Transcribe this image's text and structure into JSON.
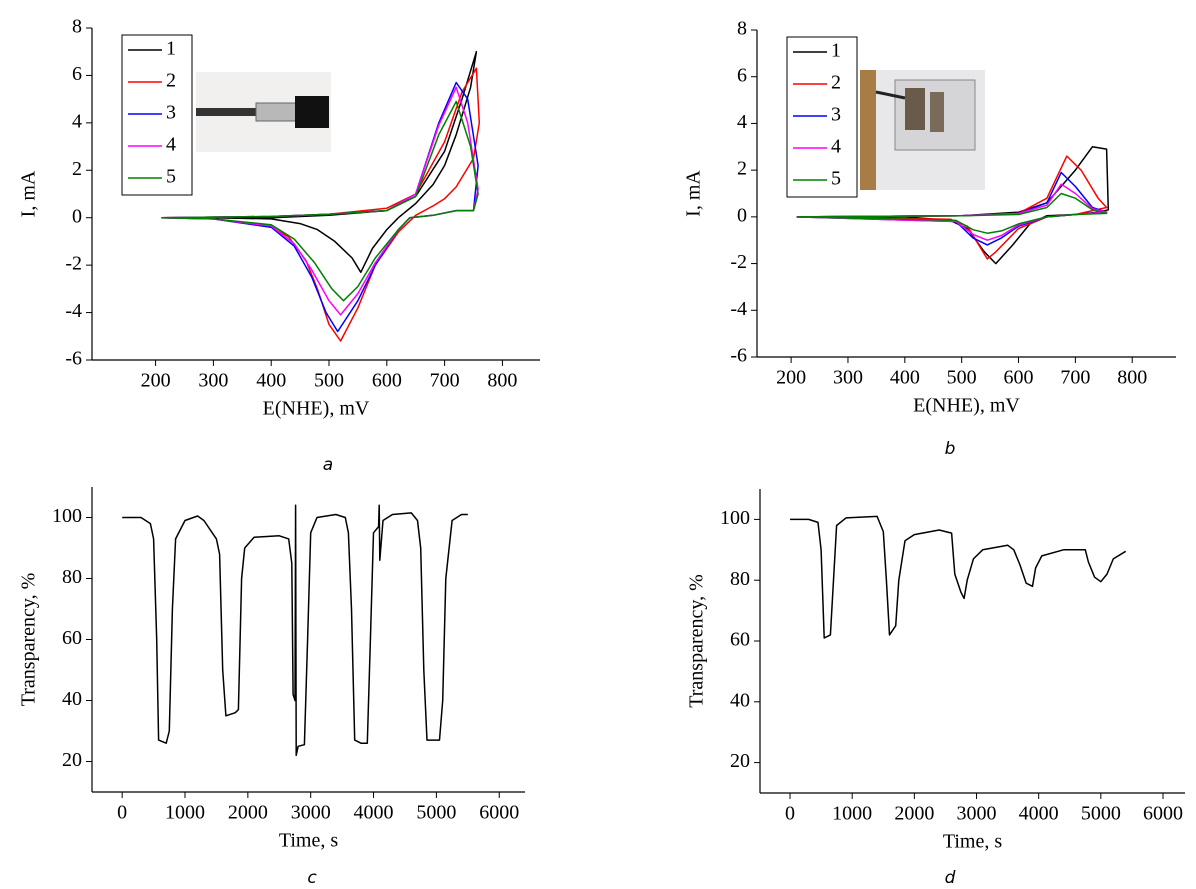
{
  "chart_data": [
    {
      "type": "line",
      "xlabel": "E(NHE), mV",
      "ylabel": "I, mA",
      "caption": "a",
      "xlim": [
        90,
        865
      ],
      "ylim": [
        -6,
        8
      ],
      "xticks": [
        200,
        300,
        400,
        500,
        600,
        700,
        800
      ],
      "yticks": [
        -6,
        -4,
        -2,
        0,
        2,
        4,
        6,
        8
      ],
      "legend": "upper left",
      "series": [
        {
          "name": "1",
          "color": "#000000",
          "x": [
            210,
            400,
            500,
            600,
            650,
            700,
            730,
            755,
            745,
            720,
            700,
            680,
            650,
            620,
            600,
            575,
            555,
            540,
            510,
            480,
            450,
            400,
            300,
            210
          ],
          "values": [
            0,
            0,
            0.1,
            0.3,
            0.9,
            2.8,
            5,
            7,
            5.5,
            3.5,
            2.2,
            1.4,
            0.6,
            0,
            -0.5,
            -1.3,
            -2.3,
            -1.7,
            -1,
            -0.5,
            -0.25,
            -0.05,
            0,
            0
          ]
        },
        {
          "name": "2",
          "color": "#ff0000",
          "x": [
            210,
            400,
            500,
            600,
            650,
            700,
            730,
            755,
            760,
            750,
            720,
            700,
            680,
            650,
            620,
            580,
            550,
            520,
            500,
            480,
            460,
            430,
            400,
            300,
            210
          ],
          "values": [
            0,
            0.05,
            0.15,
            0.4,
            1,
            3.2,
            5.3,
            6.3,
            4,
            2.5,
            1.3,
            0.8,
            0.5,
            0.1,
            -0.6,
            -2,
            -3.8,
            -5.2,
            -4.5,
            -3,
            -1.8,
            -0.8,
            -0.4,
            -0.05,
            0
          ]
        },
        {
          "name": "3",
          "color": "#0000ff",
          "x": [
            210,
            400,
            500,
            600,
            650,
            690,
            720,
            740,
            758,
            750,
            720,
            680,
            640,
            620,
            580,
            550,
            515,
            495,
            470,
            440,
            400,
            300,
            210
          ],
          "values": [
            0,
            0.05,
            0.15,
            0.3,
            1,
            4,
            5.7,
            5,
            2.2,
            0.3,
            0.3,
            0.1,
            0,
            -0.5,
            -2,
            -3.5,
            -4.8,
            -4,
            -2.5,
            -1.2,
            -0.4,
            -0.05,
            0
          ]
        },
        {
          "name": "4",
          "color": "#ff00ff",
          "x": [
            210,
            400,
            500,
            600,
            650,
            690,
            720,
            740,
            758,
            750,
            720,
            680,
            640,
            620,
            580,
            550,
            520,
            500,
            470,
            440,
            400,
            300,
            210
          ],
          "values": [
            0,
            0.05,
            0.15,
            0.3,
            1,
            3.9,
            5.5,
            4,
            1.2,
            0.3,
            0.3,
            0.1,
            0,
            -0.5,
            -1.9,
            -3.2,
            -4.1,
            -3.5,
            -2.2,
            -1.1,
            -0.35,
            -0.05,
            0
          ]
        },
        {
          "name": "5",
          "color": "#008000",
          "x": [
            210,
            400,
            500,
            600,
            650,
            690,
            720,
            745,
            758,
            750,
            720,
            680,
            640,
            620,
            580,
            550,
            525,
            505,
            475,
            440,
            400,
            300,
            210
          ],
          "values": [
            0,
            0.05,
            0.15,
            0.3,
            0.9,
            3.5,
            4.9,
            3,
            1,
            0.3,
            0.3,
            0.1,
            0,
            -0.5,
            -1.7,
            -2.9,
            -3.5,
            -3,
            -1.9,
            -0.9,
            -0.3,
            -0.05,
            0
          ]
        }
      ]
    },
    {
      "type": "line",
      "xlabel": "E(NHE), mV",
      "ylabel": "I, mA",
      "caption": "b",
      "xlim": [
        140,
        877
      ],
      "ylim": [
        -6,
        8
      ],
      "xticks": [
        200,
        300,
        400,
        500,
        600,
        700,
        800
      ],
      "yticks": [
        -6,
        -4,
        -2,
        0,
        2,
        4,
        6,
        8
      ],
      "legend": "upper left",
      "series": [
        {
          "name": "1",
          "color": "#000000",
          "x": [
            210,
            500,
            600,
            650,
            700,
            730,
            755,
            758,
            740,
            700,
            650,
            620,
            590,
            560,
            540,
            510,
            480,
            400,
            210
          ],
          "values": [
            0,
            0.05,
            0.2,
            0.6,
            2,
            3,
            2.9,
            0.3,
            0.2,
            0.1,
            0.05,
            -0.3,
            -1.2,
            -2,
            -1.5,
            -0.5,
            -0.15,
            0,
            0
          ]
        },
        {
          "name": "2",
          "color": "#ff0000",
          "x": [
            210,
            500,
            600,
            650,
            685,
            710,
            740,
            755,
            700,
            650,
            600,
            560,
            545,
            530,
            510,
            480,
            210
          ],
          "values": [
            0,
            0.05,
            0.15,
            0.8,
            2.6,
            2,
            0.8,
            0.4,
            0.1,
            0,
            -0.5,
            -1.5,
            -1.8,
            -1.2,
            -0.4,
            -0.1,
            0
          ]
        },
        {
          "name": "3",
          "color": "#0000ff",
          "x": [
            210,
            500,
            600,
            650,
            675,
            700,
            730,
            755,
            700,
            650,
            600,
            570,
            545,
            520,
            490,
            210
          ],
          "values": [
            0,
            0.05,
            0.15,
            0.6,
            1.9,
            1.3,
            0.4,
            0.2,
            0.1,
            0,
            -0.4,
            -0.9,
            -1.2,
            -0.9,
            -0.2,
            0
          ]
        },
        {
          "name": "4",
          "color": "#ff00ff",
          "x": [
            210,
            500,
            600,
            650,
            675,
            700,
            730,
            755,
            700,
            650,
            600,
            570,
            545,
            520,
            490,
            210
          ],
          "values": [
            0,
            0.05,
            0.15,
            0.5,
            1.4,
            1,
            0.35,
            0.2,
            0.1,
            0,
            -0.35,
            -0.8,
            -1,
            -0.75,
            -0.2,
            0
          ]
        },
        {
          "name": "5",
          "color": "#008000",
          "x": [
            210,
            500,
            600,
            650,
            675,
            700,
            730,
            755,
            700,
            650,
            600,
            570,
            545,
            520,
            490,
            210
          ],
          "values": [
            0,
            0.05,
            0.1,
            0.4,
            1,
            0.8,
            0.3,
            0.15,
            0.1,
            0,
            -0.3,
            -0.6,
            -0.7,
            -0.55,
            -0.15,
            0
          ]
        }
      ]
    },
    {
      "type": "line",
      "xlabel": "Time, s",
      "ylabel": "Transparency, %",
      "caption": "c",
      "xlim": [
        -480,
        6410
      ],
      "ylim": [
        10,
        110
      ],
      "xticks": [
        0,
        1000,
        2000,
        3000,
        4000,
        5000,
        6000
      ],
      "yticks": [
        20,
        40,
        60,
        80,
        100
      ],
      "color": "#000000",
      "x": [
        0,
        300,
        450,
        500,
        550,
        580,
        700,
        750,
        800,
        850,
        1000,
        1200,
        1300,
        1500,
        1550,
        1600,
        1650,
        1800,
        1850,
        1900,
        1950,
        2100,
        2500,
        2650,
        2700,
        2720,
        2750,
        2760,
        2770,
        2800,
        2900,
        2950,
        3000,
        3100,
        3400,
        3550,
        3600,
        3650,
        3700,
        3800,
        3900,
        3950,
        4000,
        4080,
        4090,
        4100,
        4150,
        4300,
        4600,
        4700,
        4750,
        4800,
        4850,
        5050,
        5100,
        5150,
        5250,
        5400,
        5500
      ],
      "values": [
        100,
        100,
        98,
        93,
        60,
        27,
        26,
        30,
        70,
        93,
        99,
        100.5,
        99,
        93,
        88,
        50,
        35,
        36,
        37,
        80,
        90,
        93.5,
        94,
        93,
        85,
        42,
        40,
        104,
        22,
        25,
        25.5,
        60,
        95,
        100,
        101,
        100,
        95,
        70,
        27,
        26,
        26,
        60,
        95,
        97,
        104,
        86,
        99,
        101,
        101.5,
        99,
        90,
        50,
        27,
        27,
        40,
        80,
        99,
        101,
        101
      ]
    },
    {
      "type": "line",
      "xlabel": "Time, s",
      "ylabel": "Transparency, %",
      "caption": "d",
      "xlim": [
        -483,
        6354
      ],
      "ylim": [
        10,
        110
      ],
      "xticks": [
        0,
        1000,
        2000,
        3000,
        4000,
        5000,
        6000
      ],
      "yticks": [
        20,
        40,
        60,
        80,
        100
      ],
      "color": "#000000",
      "x": [
        0,
        300,
        450,
        500,
        550,
        650,
        700,
        750,
        900,
        1400,
        1500,
        1550,
        1600,
        1700,
        1750,
        1850,
        2000,
        2400,
        2600,
        2650,
        2750,
        2800,
        2850,
        2950,
        3100,
        3500,
        3600,
        3700,
        3800,
        3900,
        3950,
        4050,
        4400,
        4750,
        4800,
        4900,
        5000,
        5100,
        5200,
        5400
      ],
      "values": [
        100,
        100,
        99,
        90,
        61,
        62,
        80,
        98,
        100.5,
        101,
        96,
        80,
        62,
        65,
        80,
        93,
        95,
        96.5,
        95.5,
        82,
        76,
        74,
        80,
        87,
        90,
        91.5,
        90,
        85,
        79,
        78,
        84,
        88,
        90,
        90,
        86,
        81,
        79.5,
        82,
        87,
        89.5
      ]
    }
  ]
}
